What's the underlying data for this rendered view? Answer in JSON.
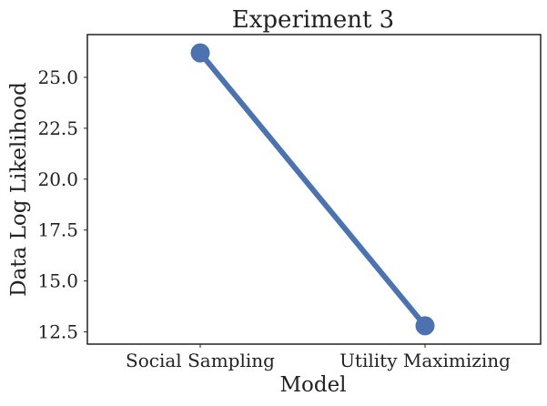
{
  "chart_data": {
    "type": "line",
    "title": "Experiment 3",
    "xlabel": "Model",
    "ylabel": "Data Log Likelihood",
    "categories": [
      "Social Sampling",
      "Utility Maximizing"
    ],
    "series": [
      {
        "values": [
          26.2,
          12.8
        ],
        "color": "#4c72b0"
      }
    ],
    "ylim": [
      11.9,
      27.1
    ],
    "yticks": [
      12.5,
      15.0,
      17.5,
      20.0,
      22.5,
      25.0
    ],
    "ytick_labels": [
      "12.5",
      "15.0",
      "17.5",
      "20.0",
      "22.5",
      "25.0"
    ],
    "grid": false,
    "legend": "none"
  }
}
